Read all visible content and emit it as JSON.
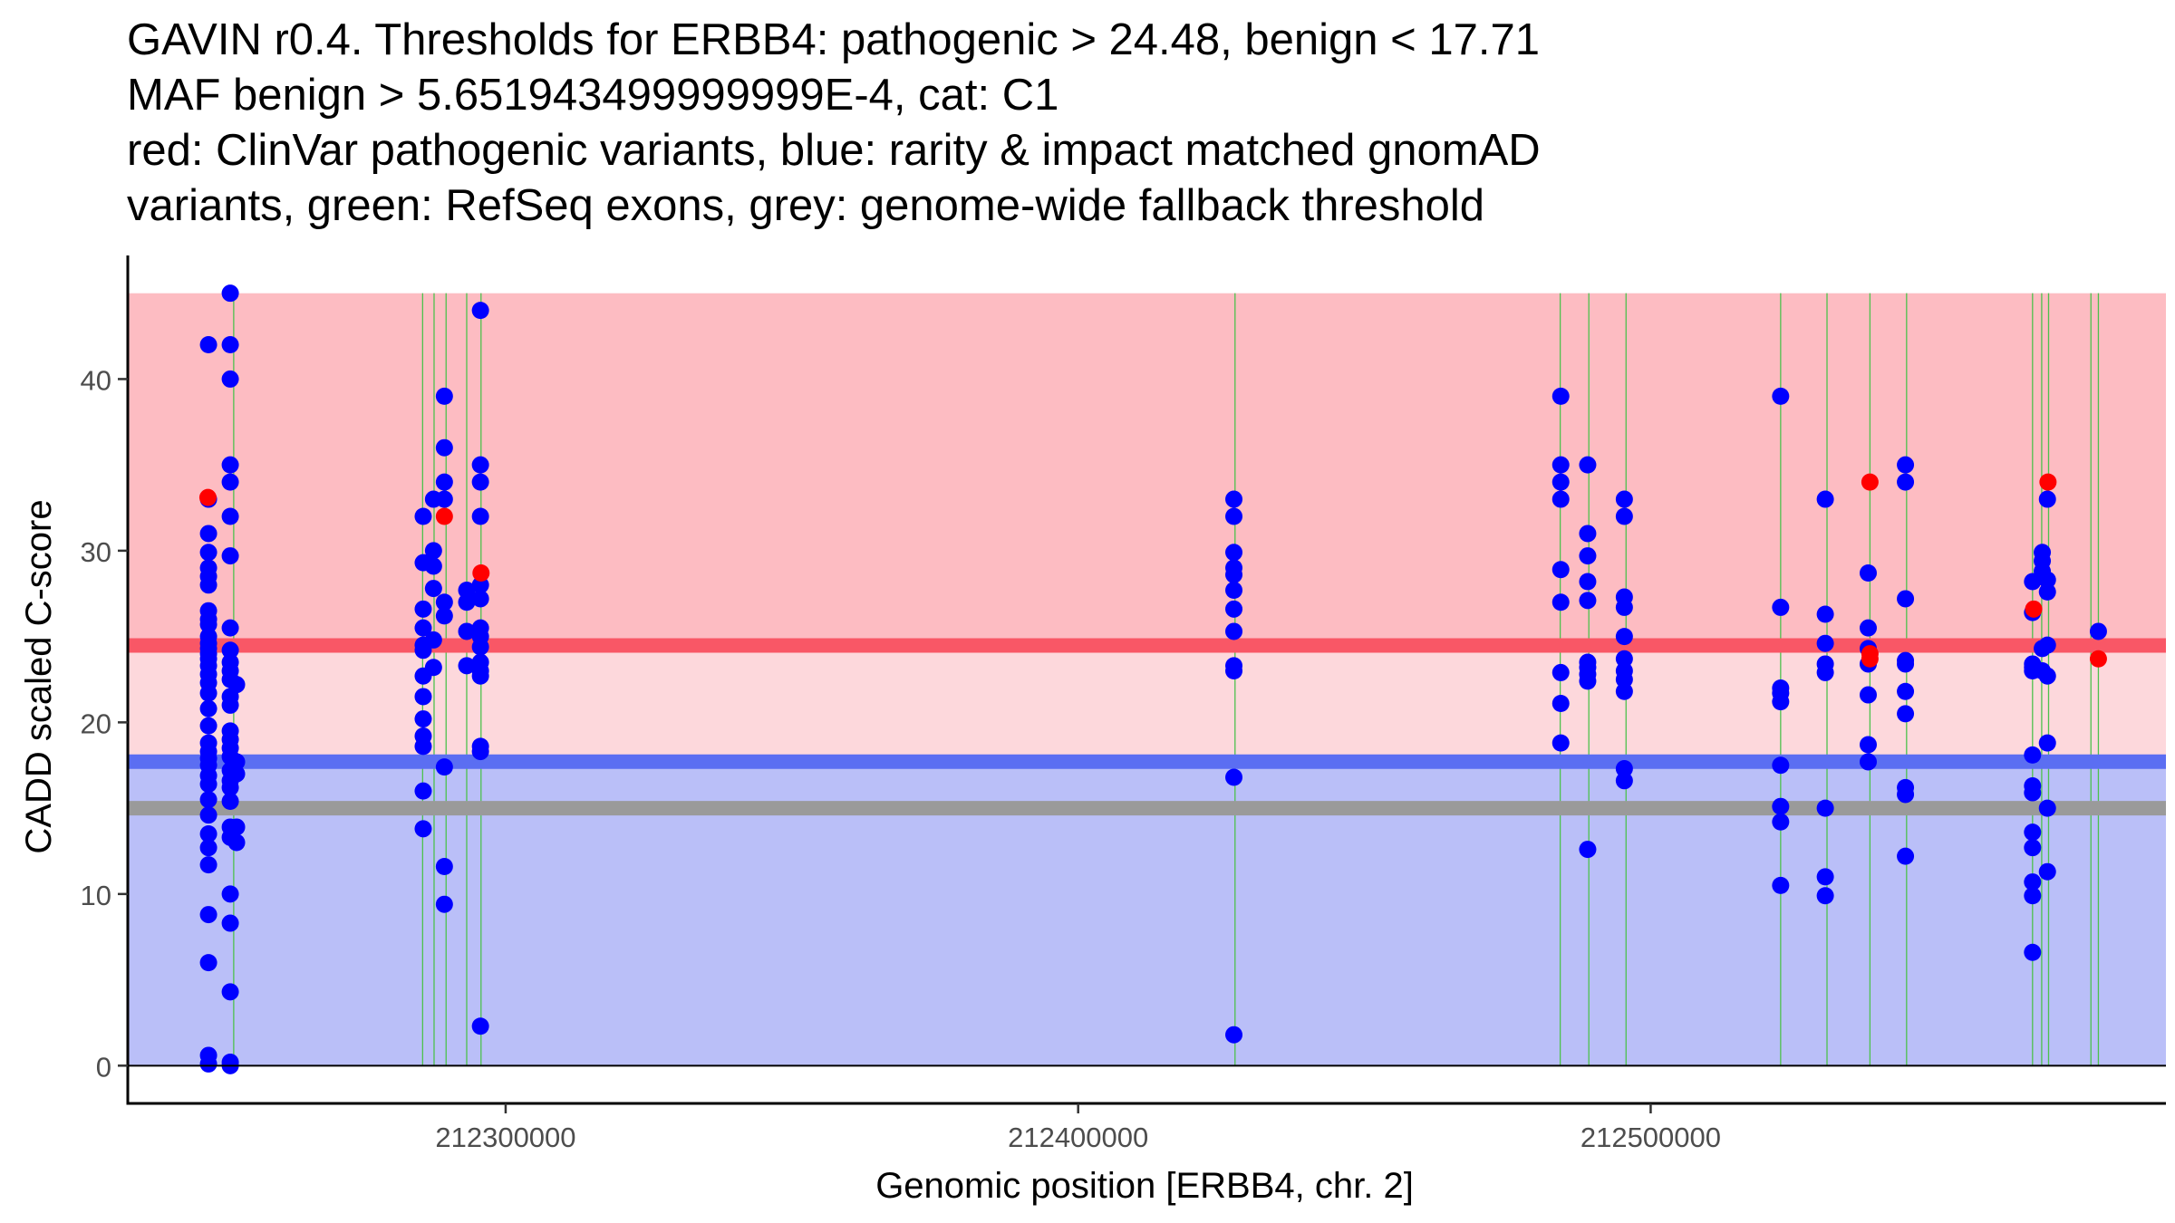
{
  "title_lines": [
    "GAVIN r0.4. Thresholds for ERBB4: pathogenic > 24.48, benign < 17.71",
    "MAF benign > 5.651943499999999E-4, cat: C1",
    "red: ClinVar pathogenic variants, blue: rarity & impact matched gnomAD",
    "variants, green: RefSeq exons, grey: genome-wide fallback threshold"
  ],
  "chart_data": {
    "type": "scatter",
    "title": "GAVIN r0.4. Thresholds for ERBB4: pathogenic > 24.48, benign < 17.71 / MAF benign > 5.651943499999999E-4, cat: C1",
    "xlabel": "Genomic position [ERBB4, chr. 2]",
    "ylabel": "CADD scaled C-score",
    "xlim": [
      212234000,
      212590000
    ],
    "ylim": [
      -2.2,
      47.2
    ],
    "x_ticks": [
      212300000,
      212400000,
      212500000
    ],
    "x_tick_labels": [
      "212300000",
      "212400000",
      "212500000"
    ],
    "y_ticks": [
      0,
      10,
      20,
      30,
      40
    ],
    "y_tick_labels": [
      "0",
      "10",
      "20",
      "30",
      "40"
    ],
    "thresholds": {
      "pathogenic": 24.48,
      "benign": 17.71,
      "fallback": 15.0,
      "max_score": 45
    },
    "colors": {
      "pathogenic_line": "#f95766",
      "pathogenic_region": "#fdbcc2",
      "intermediate_region": "#fdd8dc",
      "benign_line": "#5b6ef2",
      "benign_region": "#babff8",
      "fallback_line": "#9a9a9a",
      "exon_line": "#4dc14d",
      "gnomad_point": "#0000ff",
      "clinvar_point": "#ff0000"
    },
    "exons": [
      212252500,
      212285500,
      212287500,
      212289600,
      212293200,
      212295700,
      212427400,
      212484200,
      212489200,
      212495700,
      212522700,
      212530800,
      212538300,
      212544700,
      212566700,
      212568300,
      212569500,
      212576900,
      212578200
    ],
    "series": [
      {
        "name": "rarity & impact matched gnomAD variants",
        "color": "#0000ff",
        "points": [
          [
            212248100,
            42.0
          ],
          [
            212248100,
            33.0
          ],
          [
            212248100,
            31.0
          ],
          [
            212248100,
            29.9
          ],
          [
            212248100,
            29.0
          ],
          [
            212248100,
            28.5
          ],
          [
            212248100,
            28.0
          ],
          [
            212248100,
            26.5
          ],
          [
            212248100,
            26.0
          ],
          [
            212248100,
            25.7
          ],
          [
            212248100,
            25.0
          ],
          [
            212248100,
            24.6
          ],
          [
            212248100,
            24.3
          ],
          [
            212248100,
            24.0
          ],
          [
            212248100,
            23.7
          ],
          [
            212248100,
            23.3
          ],
          [
            212248100,
            22.8
          ],
          [
            212248100,
            22.3
          ],
          [
            212248100,
            21.7
          ],
          [
            212248100,
            20.8
          ],
          [
            212248100,
            19.8
          ],
          [
            212248100,
            18.8
          ],
          [
            212248100,
            18.3
          ],
          [
            212248100,
            17.9
          ],
          [
            212248100,
            17.5
          ],
          [
            212248100,
            16.9
          ],
          [
            212248100,
            16.4
          ],
          [
            212248100,
            15.5
          ],
          [
            212248100,
            14.6
          ],
          [
            212248100,
            13.5
          ],
          [
            212248100,
            12.7
          ],
          [
            212248100,
            11.7
          ],
          [
            212248100,
            8.8
          ],
          [
            212248100,
            6.0
          ],
          [
            212248100,
            0.6
          ],
          [
            212248100,
            0.1
          ],
          [
            212251900,
            45.0
          ],
          [
            212251900,
            42.0
          ],
          [
            212251900,
            40.0
          ],
          [
            212251900,
            35.0
          ],
          [
            212251900,
            34.0
          ],
          [
            212251900,
            32.0
          ],
          [
            212251900,
            29.7
          ],
          [
            212251900,
            25.5
          ],
          [
            212251900,
            24.2
          ],
          [
            212251900,
            23.5
          ],
          [
            212251900,
            23.0
          ],
          [
            212251900,
            22.5
          ],
          [
            212251900,
            21.5
          ],
          [
            212251900,
            21.0
          ],
          [
            212251900,
            19.5
          ],
          [
            212251900,
            19.0
          ],
          [
            212251900,
            18.5
          ],
          [
            212251900,
            18.0
          ],
          [
            212251900,
            17.2
          ],
          [
            212251900,
            16.6
          ],
          [
            212251900,
            16.2
          ],
          [
            212251900,
            15.4
          ],
          [
            212251900,
            13.9
          ],
          [
            212251900,
            13.3
          ],
          [
            212251900,
            10.0
          ],
          [
            212251900,
            8.3
          ],
          [
            212251900,
            4.3
          ],
          [
            212251900,
            0.2
          ],
          [
            212251900,
            0.0
          ],
          [
            212253000,
            22.2
          ],
          [
            212253000,
            17.7
          ],
          [
            212253000,
            17.0
          ],
          [
            212253000,
            13.9
          ],
          [
            212253000,
            13.0
          ],
          [
            212285600,
            32.0
          ],
          [
            212285600,
            29.3
          ],
          [
            212285600,
            26.6
          ],
          [
            212285600,
            25.5
          ],
          [
            212285600,
            24.5
          ],
          [
            212285600,
            24.2
          ],
          [
            212285600,
            22.7
          ],
          [
            212285600,
            21.5
          ],
          [
            212285600,
            20.2
          ],
          [
            212285600,
            19.2
          ],
          [
            212285600,
            18.6
          ],
          [
            212285600,
            16.0
          ],
          [
            212285600,
            13.8
          ],
          [
            212287400,
            33.0
          ],
          [
            212287400,
            30.0
          ],
          [
            212287400,
            29.1
          ],
          [
            212287400,
            27.8
          ],
          [
            212287400,
            24.8
          ],
          [
            212287400,
            23.2
          ],
          [
            212289300,
            39.0
          ],
          [
            212289300,
            36.0
          ],
          [
            212289300,
            34.0
          ],
          [
            212289300,
            33.0
          ],
          [
            212289300,
            27.0
          ],
          [
            212289300,
            26.2
          ],
          [
            212289300,
            17.4
          ],
          [
            212289300,
            11.6
          ],
          [
            212289300,
            9.4
          ],
          [
            212293200,
            27.7
          ],
          [
            212293200,
            27.0
          ],
          [
            212293200,
            25.3
          ],
          [
            212293200,
            23.3
          ],
          [
            212295600,
            44.0
          ],
          [
            212295600,
            35.0
          ],
          [
            212295600,
            34.0
          ],
          [
            212295600,
            32.0
          ],
          [
            212295600,
            28.0
          ],
          [
            212295600,
            27.2
          ],
          [
            212295600,
            25.5
          ],
          [
            212295600,
            25.0
          ],
          [
            212295600,
            24.4
          ],
          [
            212295600,
            23.5
          ],
          [
            212295600,
            23.0
          ],
          [
            212295600,
            22.7
          ],
          [
            212295600,
            18.6
          ],
          [
            212295600,
            18.3
          ],
          [
            212295600,
            2.3
          ],
          [
            212427200,
            33.0
          ],
          [
            212427200,
            32.0
          ],
          [
            212427200,
            29.9
          ],
          [
            212427200,
            29.0
          ],
          [
            212427200,
            28.6
          ],
          [
            212427200,
            27.7
          ],
          [
            212427200,
            26.6
          ],
          [
            212427200,
            25.3
          ],
          [
            212427200,
            23.3
          ],
          [
            212427200,
            23.0
          ],
          [
            212427200,
            16.8
          ],
          [
            212427200,
            1.8
          ],
          [
            212484300,
            39.0
          ],
          [
            212484300,
            35.0
          ],
          [
            212484300,
            34.0
          ],
          [
            212484300,
            33.0
          ],
          [
            212484300,
            28.9
          ],
          [
            212484300,
            27.0
          ],
          [
            212484300,
            22.9
          ],
          [
            212484300,
            21.1
          ],
          [
            212484300,
            18.8
          ],
          [
            212489000,
            35.0
          ],
          [
            212489000,
            31.0
          ],
          [
            212489000,
            29.7
          ],
          [
            212489000,
            28.2
          ],
          [
            212489000,
            27.1
          ],
          [
            212489000,
            23.5
          ],
          [
            212489000,
            23.2
          ],
          [
            212489000,
            22.8
          ],
          [
            212489000,
            22.4
          ],
          [
            212489000,
            12.6
          ],
          [
            212495400,
            33.0
          ],
          [
            212495400,
            32.0
          ],
          [
            212495400,
            27.3
          ],
          [
            212495400,
            26.7
          ],
          [
            212495400,
            25.0
          ],
          [
            212495400,
            23.7
          ],
          [
            212495400,
            23.0
          ],
          [
            212495400,
            22.5
          ],
          [
            212495400,
            21.8
          ],
          [
            212495400,
            17.3
          ],
          [
            212495400,
            16.6
          ],
          [
            212522700,
            39.0
          ],
          [
            212522700,
            26.7
          ],
          [
            212522700,
            22.0
          ],
          [
            212522700,
            21.7
          ],
          [
            212522700,
            21.2
          ],
          [
            212522700,
            17.5
          ],
          [
            212522700,
            15.1
          ],
          [
            212522700,
            14.2
          ],
          [
            212522700,
            10.5
          ],
          [
            212530500,
            33.0
          ],
          [
            212530500,
            26.3
          ],
          [
            212530500,
            24.6
          ],
          [
            212530500,
            23.4
          ],
          [
            212530500,
            22.9
          ],
          [
            212530500,
            15.0
          ],
          [
            212530500,
            11.0
          ],
          [
            212530500,
            9.9
          ],
          [
            212538000,
            28.7
          ],
          [
            212538000,
            25.5
          ],
          [
            212538000,
            24.3
          ],
          [
            212538000,
            23.4
          ],
          [
            212538000,
            21.6
          ],
          [
            212538000,
            18.7
          ],
          [
            212538000,
            17.7
          ],
          [
            212544500,
            35.0
          ],
          [
            212544500,
            34.0
          ],
          [
            212544500,
            27.2
          ],
          [
            212544500,
            23.6
          ],
          [
            212544500,
            23.4
          ],
          [
            212544500,
            21.8
          ],
          [
            212544500,
            20.5
          ],
          [
            212544500,
            16.2
          ],
          [
            212544500,
            15.8
          ],
          [
            212544500,
            12.2
          ],
          [
            212566700,
            28.2
          ],
          [
            212566700,
            26.4
          ],
          [
            212566700,
            23.4
          ],
          [
            212566700,
            23.2
          ],
          [
            212566700,
            23.0
          ],
          [
            212566700,
            18.1
          ],
          [
            212566700,
            16.3
          ],
          [
            212566700,
            15.9
          ],
          [
            212566700,
            13.6
          ],
          [
            212566700,
            12.7
          ],
          [
            212566700,
            10.7
          ],
          [
            212566700,
            9.9
          ],
          [
            212566700,
            6.6
          ],
          [
            212568400,
            29.9
          ],
          [
            212568400,
            29.4
          ],
          [
            212568400,
            28.8
          ],
          [
            212568400,
            24.3
          ],
          [
            212568400,
            23.0
          ],
          [
            212569300,
            33.0
          ],
          [
            212569300,
            28.3
          ],
          [
            212569300,
            27.6
          ],
          [
            212569300,
            24.5
          ],
          [
            212569300,
            22.7
          ],
          [
            212569300,
            18.8
          ],
          [
            212569300,
            15.0
          ],
          [
            212569300,
            11.3
          ],
          [
            212578200,
            25.3
          ]
        ]
      },
      {
        "name": "ClinVar pathogenic variants",
        "color": "#ff0000",
        "points": [
          [
            212248000,
            33.1
          ],
          [
            212289300,
            32.0
          ],
          [
            212295700,
            28.7
          ],
          [
            212538300,
            34.0
          ],
          [
            212538300,
            24.0
          ],
          [
            212538300,
            23.7
          ],
          [
            212566900,
            26.6
          ],
          [
            212569400,
            34.0
          ],
          [
            212578200,
            23.7
          ]
        ]
      }
    ]
  }
}
